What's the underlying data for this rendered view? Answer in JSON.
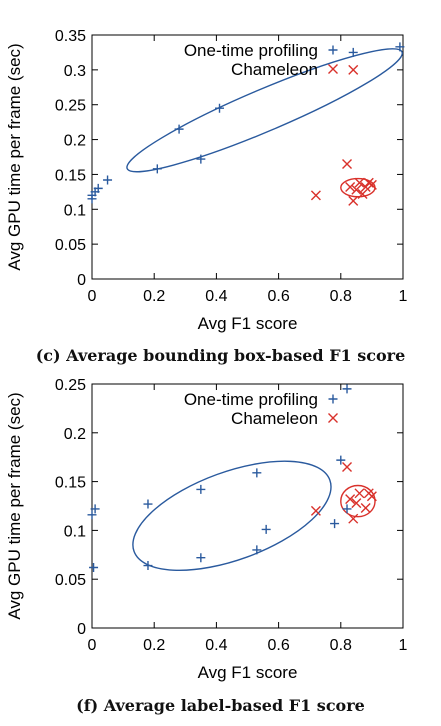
{
  "chart_data": [
    {
      "type": "scatter",
      "caption": "(c) Average bounding box-based F1 score",
      "xlabel": "Avg F1 score",
      "ylabel": "Avg GPU time per frame (sec)",
      "xlim": [
        0,
        1
      ],
      "ylim": [
        0,
        0.35
      ],
      "xticks": [
        "0",
        "0.2",
        "0.4",
        "0.6",
        "0.8",
        "1"
      ],
      "yticks": [
        "0",
        "0.05",
        "0.1",
        "0.15",
        "0.2",
        "0.25",
        "0.3",
        "0.35"
      ],
      "grid": false,
      "legend": "top-right",
      "series": [
        {
          "name": "One-time profiling",
          "marker": "plus",
          "color": "#2a5a9e",
          "points": [
            [
              0,
              0.115
            ],
            [
              0,
              0.12
            ],
            [
              0.01,
              0.125
            ],
            [
              0.02,
              0.13
            ],
            [
              0.05,
              0.142
            ],
            [
              0.21,
              0.158
            ],
            [
              0.28,
              0.215
            ],
            [
              0.35,
              0.172
            ],
            [
              0.41,
              0.245
            ],
            [
              0.84,
              0.325
            ],
            [
              0.99,
              0.333
            ]
          ]
        },
        {
          "name": "Chameleon",
          "marker": "x",
          "color": "#d9312b",
          "points": [
            [
              0.72,
              0.12
            ],
            [
              0.82,
              0.165
            ],
            [
              0.84,
              0.112
            ],
            [
              0.83,
              0.132
            ],
            [
              0.85,
              0.128
            ],
            [
              0.86,
              0.138
            ],
            [
              0.87,
              0.122
            ],
            [
              0.88,
              0.132
            ],
            [
              0.89,
              0.138
            ],
            [
              0.9,
              0.135
            ],
            [
              0.84,
              0.3
            ]
          ]
        }
      ],
      "ellipses": [
        {
          "color": "#2a5a9e",
          "cx": 0.555,
          "cy": 0.242,
          "rx": 0.48,
          "ry": 0.03,
          "tilt_deg": -23
        },
        {
          "color": "#d9312b",
          "cx": 0.855,
          "cy": 0.131,
          "rx": 0.055,
          "ry": 0.013,
          "tilt_deg": 0
        }
      ]
    },
    {
      "type": "scatter",
      "caption": "(f) Average label-based F1 score",
      "xlabel": "Avg F1 score",
      "ylabel": "Avg GPU time per frame (sec)",
      "xlim": [
        0,
        1
      ],
      "ylim": [
        0,
        0.25
      ],
      "xticks": [
        "0",
        "0.2",
        "0.4",
        "0.6",
        "0.8",
        "1"
      ],
      "yticks": [
        "0",
        "0.05",
        "0.1",
        "0.15",
        "0.2",
        "0.25"
      ],
      "grid": false,
      "legend": "top-right",
      "series": [
        {
          "name": "One-time profiling",
          "marker": "plus",
          "color": "#2a5a9e",
          "points": [
            [
              0,
              0.116
            ],
            [
              0.01,
              0.122
            ],
            [
              0.005,
              0.062
            ],
            [
              0.18,
              0.127
            ],
            [
              0.18,
              0.064
            ],
            [
              0.35,
              0.142
            ],
            [
              0.35,
              0.072
            ],
            [
              0.53,
              0.159
            ],
            [
              0.53,
              0.08
            ],
            [
              0.56,
              0.101
            ],
            [
              0.78,
              0.107
            ],
            [
              0.8,
              0.172
            ],
            [
              0.82,
              0.122
            ],
            [
              0.82,
              0.245
            ]
          ]
        },
        {
          "name": "Chameleon",
          "marker": "x",
          "color": "#d9312b",
          "points": [
            [
              0.72,
              0.12
            ],
            [
              0.82,
              0.165
            ],
            [
              0.83,
              0.132
            ],
            [
              0.84,
              0.112
            ],
            [
              0.85,
              0.128
            ],
            [
              0.86,
              0.138
            ],
            [
              0.88,
              0.123
            ],
            [
              0.89,
              0.138
            ],
            [
              0.9,
              0.135
            ]
          ]
        }
      ],
      "ellipses": [
        {
          "color": "#2a5a9e",
          "cx": 0.45,
          "cy": 0.115,
          "rx": 0.335,
          "ry": 0.045,
          "tilt_deg": -20
        },
        {
          "color": "#d9312b",
          "cx": 0.855,
          "cy": 0.13,
          "rx": 0.055,
          "ry": 0.016,
          "tilt_deg": 0
        }
      ]
    }
  ]
}
